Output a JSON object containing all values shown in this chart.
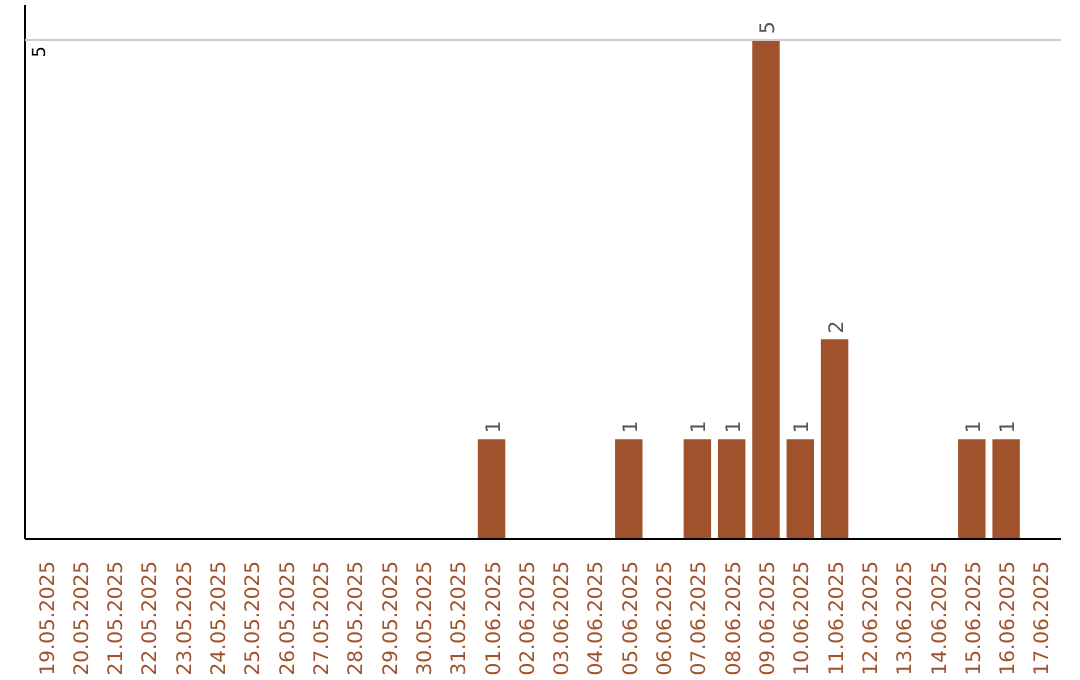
{
  "chart_data": {
    "type": "bar",
    "categories": [
      "19.05.2025",
      "20.05.2025",
      "21.05.2025",
      "22.05.2025",
      "23.05.2025",
      "24.05.2025",
      "25.05.2025",
      "26.05.2025",
      "27.05.2025",
      "28.05.2025",
      "29.05.2025",
      "30.05.2025",
      "31.05.2025",
      "01.06.2025",
      "02.06.2025",
      "03.06.2025",
      "04.06.2025",
      "05.06.2025",
      "06.06.2025",
      "07.06.2025",
      "08.06.2025",
      "09.06.2025",
      "10.06.2025",
      "11.06.2025",
      "12.06.2025",
      "13.06.2025",
      "14.06.2025",
      "15.06.2025",
      "16.06.2025",
      "17.06.2025"
    ],
    "values": [
      null,
      null,
      null,
      null,
      null,
      null,
      null,
      null,
      null,
      null,
      null,
      null,
      null,
      1,
      null,
      null,
      null,
      1,
      null,
      1,
      1,
      5,
      1,
      2,
      null,
      null,
      null,
      1,
      1,
      null
    ],
    "ylim": [
      0,
      5.35
    ],
    "ref_lines": [
      {
        "axis": "y",
        "value": 5,
        "label": "5",
        "color": "#cccccc"
      }
    ],
    "value_labels": [
      null,
      null,
      null,
      null,
      null,
      null,
      null,
      null,
      null,
      null,
      null,
      null,
      null,
      "1",
      null,
      null,
      null,
      "1",
      null,
      "1",
      "1",
      "5",
      "1",
      "2",
      null,
      null,
      null,
      "1",
      "1",
      null
    ],
    "color": "#a0522d",
    "grid": false
  }
}
